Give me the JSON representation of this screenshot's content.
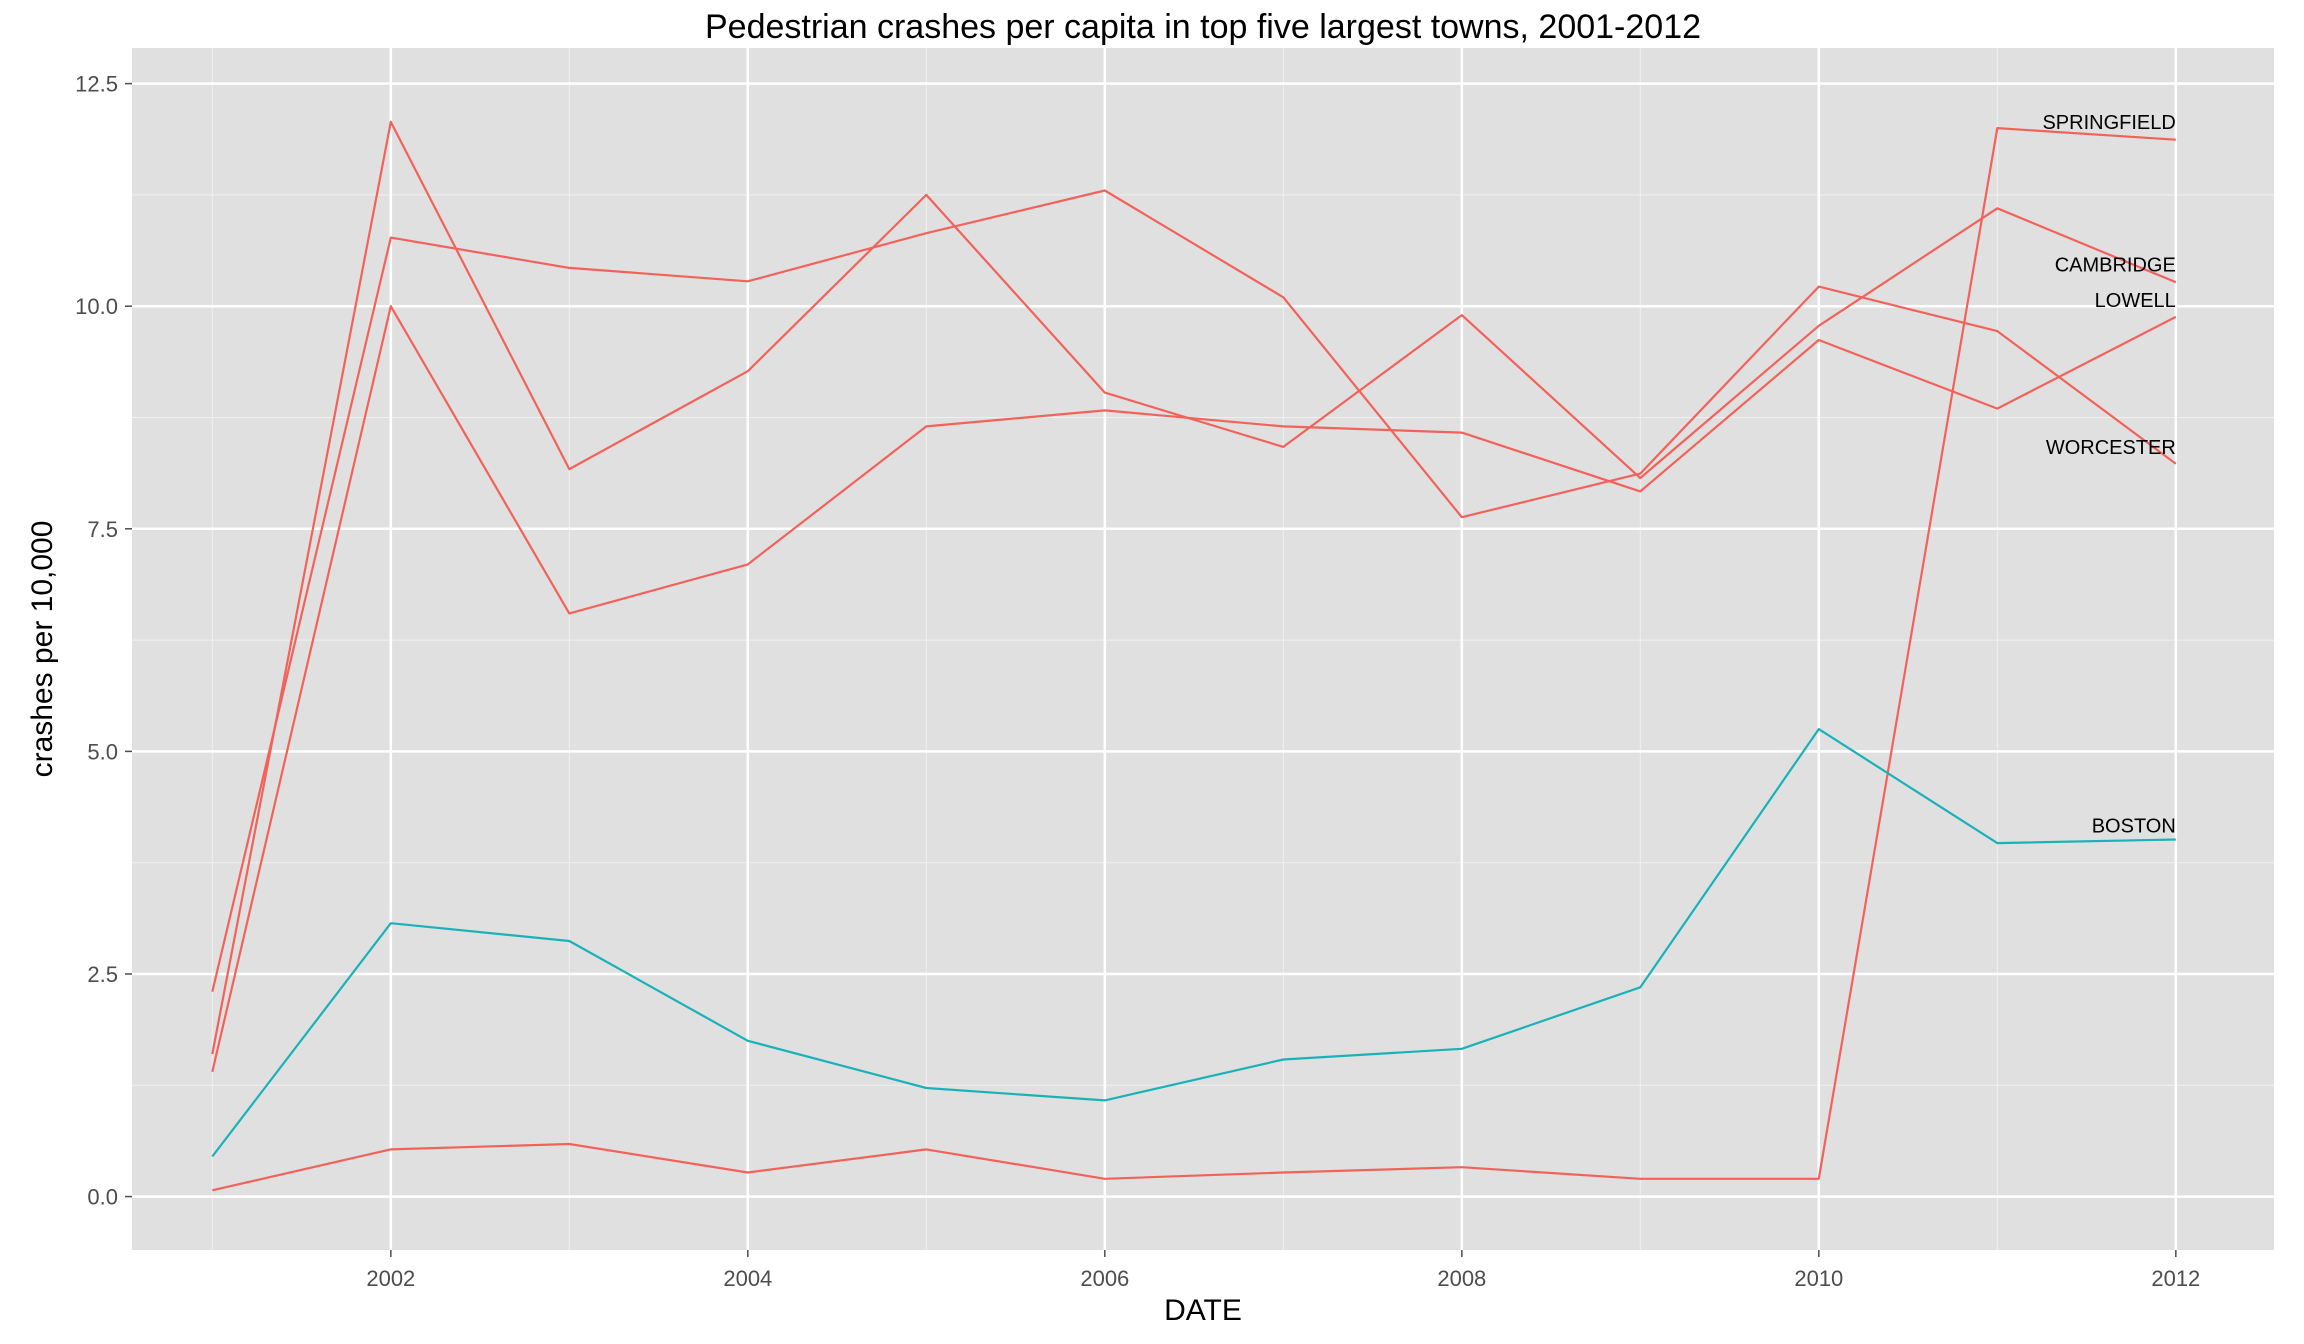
{
  "chart_data": {
    "type": "line",
    "title": "Pedestrian crashes per capita in top five largest towns, 2001-2012",
    "xlabel": "DATE",
    "ylabel": "crashes per 10,000",
    "xlim": [
      2000.55,
      2012.55
    ],
    "ylim": [
      -0.6,
      12.9
    ],
    "x_ticks": [
      2002,
      2004,
      2006,
      2008,
      2010,
      2012
    ],
    "x_tick_labels": [
      "2002",
      "2004",
      "2006",
      "2008",
      "2010",
      "2012"
    ],
    "y_ticks": [
      0,
      2.5,
      5,
      7.5,
      10,
      12.5
    ],
    "y_tick_labels": [
      "0.0",
      "2.5",
      "5.0",
      "7.5",
      "10.0",
      "12.5"
    ],
    "grid": true,
    "legend": "none",
    "background_color": "#e0e0e0",
    "grid_color": "#ffffff",
    "colors": {
      "red": "#f2625a",
      "teal": "#1ab2b8"
    },
    "x": [
      2001,
      2002,
      2003,
      2004,
      2005,
      2006,
      2007,
      2008,
      2009,
      2010,
      2011,
      2012
    ],
    "series": [
      {
        "name": "SPRINGFIELD",
        "color": "#f2625a",
        "values": [
          0.07,
          0.53,
          0.59,
          0.27,
          0.53,
          0.2,
          0.27,
          0.33,
          0.2,
          0.2,
          12.0,
          11.87
        ]
      },
      {
        "name": "CAMBRIDGE",
        "color": "#f2625a",
        "values": [
          1.6,
          12.07,
          8.17,
          9.27,
          11.25,
          9.03,
          8.42,
          9.9,
          8.07,
          9.78,
          11.1,
          10.27
        ]
      },
      {
        "name": "LOWELL",
        "color": "#f2625a",
        "values": [
          1.4,
          10.0,
          6.55,
          7.1,
          8.65,
          8.83,
          8.65,
          8.58,
          7.92,
          9.62,
          8.85,
          9.88
        ]
      },
      {
        "name": "WORCESTER",
        "color": "#f2625a",
        "values": [
          2.3,
          10.77,
          10.43,
          10.28,
          10.82,
          11.3,
          10.1,
          7.63,
          8.12,
          10.22,
          9.72,
          8.23
        ]
      },
      {
        "name": "BOSTON",
        "color": "#1ab2b8",
        "values": [
          0.45,
          3.07,
          2.87,
          1.75,
          1.22,
          1.08,
          1.54,
          1.66,
          2.35,
          5.25,
          3.97,
          4.01
        ]
      }
    ],
    "series_labels": [
      {
        "text": "SPRINGFIELD",
        "y": 12.07
      },
      {
        "text": "CAMBRIDGE",
        "y": 10.47
      },
      {
        "text": "LOWELL",
        "y": 10.07
      },
      {
        "text": "WORCESTER",
        "y": 8.42
      },
      {
        "text": "BOSTON",
        "y": 4.17
      }
    ]
  }
}
